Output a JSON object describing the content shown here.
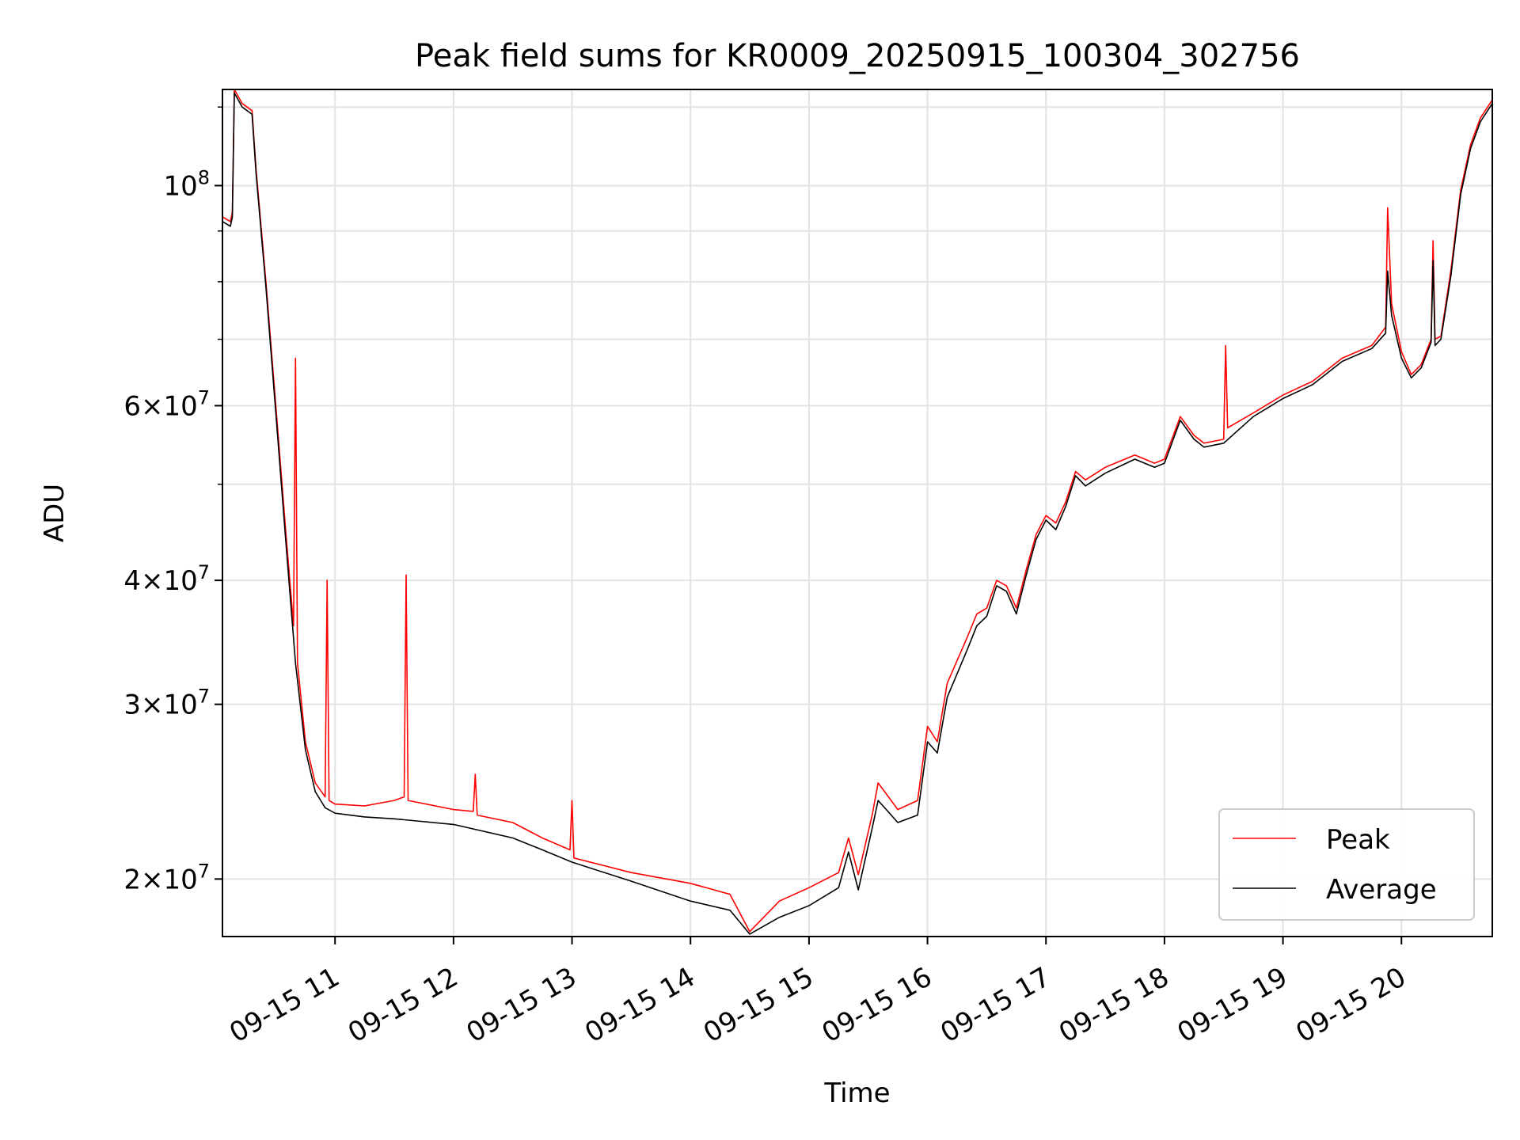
{
  "chart_data": {
    "type": "line",
    "title": "Peak field sums for KR0009_20250915_100304_302756",
    "xlabel": "Time",
    "ylabel": "ADU",
    "yscale": "log",
    "ylim": [
      17500000,
      125000000
    ],
    "xlim_hours": [
      "2025-09-15 10:03",
      "2025-09-15 20:46"
    ],
    "grid": true,
    "legend_position": "lower right",
    "x_ticks": [
      "2025-09-15 11:00",
      "2025-09-15 12:00",
      "2025-09-15 13:00",
      "2025-09-15 14:00",
      "2025-09-15 15:00",
      "2025-09-15 16:00",
      "2025-09-15 17:00",
      "2025-09-15 18:00",
      "2025-09-15 19:00",
      "2025-09-15 20:00"
    ],
    "x_tick_labels": [
      "09-15 11",
      "09-15 12",
      "09-15 13",
      "09-15 14",
      "09-15 15",
      "09-15 16",
      "09-15 17",
      "09-15 18",
      "09-15 19",
      "09-15 20"
    ],
    "y_ticks": [
      {
        "value": 100000000,
        "base": "10",
        "exp": "8",
        "mant": ""
      },
      {
        "value": 60000000,
        "base": "10",
        "exp": "7",
        "mant": "6×"
      },
      {
        "value": 40000000,
        "base": "10",
        "exp": "7",
        "mant": "4×"
      },
      {
        "value": 30000000,
        "base": "10",
        "exp": "7",
        "mant": "3×"
      },
      {
        "value": 20000000,
        "base": "10",
        "exp": "7",
        "mant": "2×"
      }
    ],
    "series": [
      {
        "name": "Peak",
        "color": "#ff0000",
        "points": [
          [
            "2025-09-15 10:03",
            93000000
          ],
          [
            "2025-09-15 10:07",
            92000000
          ],
          [
            "2025-09-15 10:08",
            94000000
          ],
          [
            "2025-09-15 10:09",
            125000000
          ],
          [
            "2025-09-15 10:13",
            121000000
          ],
          [
            "2025-09-15 10:18",
            119000000
          ],
          [
            "2025-09-15 10:20",
            104000000
          ],
          [
            "2025-09-15 10:25",
            80000000
          ],
          [
            "2025-09-15 10:30",
            60000000
          ],
          [
            "2025-09-15 10:35",
            45000000
          ],
          [
            "2025-09-15 10:39",
            36000000
          ],
          [
            "2025-09-15 10:40",
            67000000
          ],
          [
            "2025-09-15 10:41",
            33000000
          ],
          [
            "2025-09-15 10:45",
            27500000
          ],
          [
            "2025-09-15 10:50",
            25000000
          ],
          [
            "2025-09-15 10:55",
            24200000
          ],
          [
            "2025-09-15 10:56",
            40000000
          ],
          [
            "2025-09-15 10:57",
            24000000
          ],
          [
            "2025-09-15 11:00",
            23800000
          ],
          [
            "2025-09-15 11:15",
            23700000
          ],
          [
            "2025-09-15 11:30",
            24000000
          ],
          [
            "2025-09-15 11:35",
            24200000
          ],
          [
            "2025-09-15 11:36",
            40500000
          ],
          [
            "2025-09-15 11:37",
            24000000
          ],
          [
            "2025-09-15 12:00",
            23500000
          ],
          [
            "2025-09-15 12:10",
            23400000
          ],
          [
            "2025-09-15 12:11",
            25500000
          ],
          [
            "2025-09-15 12:12",
            23200000
          ],
          [
            "2025-09-15 12:30",
            22800000
          ],
          [
            "2025-09-15 12:45",
            22000000
          ],
          [
            "2025-09-15 12:59",
            21400000
          ],
          [
            "2025-09-15 13:00",
            24000000
          ],
          [
            "2025-09-15 13:01",
            21000000
          ],
          [
            "2025-09-15 13:30",
            20300000
          ],
          [
            "2025-09-15 14:00",
            19800000
          ],
          [
            "2025-09-15 14:20",
            19300000
          ],
          [
            "2025-09-15 14:30",
            17700000
          ],
          [
            "2025-09-15 14:45",
            19000000
          ],
          [
            "2025-09-15 15:00",
            19600000
          ],
          [
            "2025-09-15 15:15",
            20300000
          ],
          [
            "2025-09-15 15:20",
            22000000
          ],
          [
            "2025-09-15 15:25",
            20200000
          ],
          [
            "2025-09-15 15:32",
            23200000
          ],
          [
            "2025-09-15 15:35",
            25000000
          ],
          [
            "2025-09-15 15:45",
            23500000
          ],
          [
            "2025-09-15 15:55",
            24000000
          ],
          [
            "2025-09-15 16:00",
            28500000
          ],
          [
            "2025-09-15 16:05",
            27500000
          ],
          [
            "2025-09-15 16:10",
            31500000
          ],
          [
            "2025-09-15 16:20",
            35000000
          ],
          [
            "2025-09-15 16:25",
            37000000
          ],
          [
            "2025-09-15 16:30",
            37500000
          ],
          [
            "2025-09-15 16:35",
            40000000
          ],
          [
            "2025-09-15 16:40",
            39500000
          ],
          [
            "2025-09-15 16:45",
            37500000
          ],
          [
            "2025-09-15 16:50",
            41000000
          ],
          [
            "2025-09-15 16:55",
            44500000
          ],
          [
            "2025-09-15 17:00",
            46500000
          ],
          [
            "2025-09-15 17:05",
            45700000
          ],
          [
            "2025-09-15 17:10",
            48000000
          ],
          [
            "2025-09-15 17:15",
            51500000
          ],
          [
            "2025-09-15 17:20",
            50500000
          ],
          [
            "2025-09-15 17:30",
            52000000
          ],
          [
            "2025-09-15 17:45",
            53500000
          ],
          [
            "2025-09-15 17:55",
            52500000
          ],
          [
            "2025-09-15 18:00",
            53000000
          ],
          [
            "2025-09-15 18:08",
            58500000
          ],
          [
            "2025-09-15 18:15",
            56000000
          ],
          [
            "2025-09-15 18:20",
            55000000
          ],
          [
            "2025-09-15 18:30",
            55500000
          ],
          [
            "2025-09-15 18:31",
            69000000
          ],
          [
            "2025-09-15 18:32",
            57000000
          ],
          [
            "2025-09-15 18:45",
            59000000
          ],
          [
            "2025-09-15 19:00",
            61500000
          ],
          [
            "2025-09-15 19:15",
            63500000
          ],
          [
            "2025-09-15 19:30",
            67000000
          ],
          [
            "2025-09-15 19:45",
            69000000
          ],
          [
            "2025-09-15 19:52",
            72000000
          ],
          [
            "2025-09-15 19:53",
            95000000
          ],
          [
            "2025-09-15 19:55",
            76000000
          ],
          [
            "2025-09-15 20:00",
            68000000
          ],
          [
            "2025-09-15 20:05",
            64500000
          ],
          [
            "2025-09-15 20:10",
            66000000
          ],
          [
            "2025-09-15 20:15",
            70000000
          ],
          [
            "2025-09-15 20:16",
            88000000
          ],
          [
            "2025-09-15 20:17",
            70000000
          ],
          [
            "2025-09-15 20:20",
            70500000
          ],
          [
            "2025-09-15 20:25",
            82000000
          ],
          [
            "2025-09-15 20:30",
            99000000
          ],
          [
            "2025-09-15 20:35",
            110000000
          ],
          [
            "2025-09-15 20:40",
            117000000
          ],
          [
            "2025-09-15 20:46",
            122000000
          ]
        ]
      },
      {
        "name": "Average",
        "color": "#000000",
        "points": [
          [
            "2025-09-15 10:03",
            92000000
          ],
          [
            "2025-09-15 10:07",
            91000000
          ],
          [
            "2025-09-15 10:08",
            93000000
          ],
          [
            "2025-09-15 10:09",
            124000000
          ],
          [
            "2025-09-15 10:13",
            120000000
          ],
          [
            "2025-09-15 10:18",
            118000000
          ],
          [
            "2025-09-15 10:20",
            103000000
          ],
          [
            "2025-09-15 10:25",
            79000000
          ],
          [
            "2025-09-15 10:30",
            59000000
          ],
          [
            "2025-09-15 10:35",
            44000000
          ],
          [
            "2025-09-15 10:40",
            33000000
          ],
          [
            "2025-09-15 10:45",
            27000000
          ],
          [
            "2025-09-15 10:50",
            24500000
          ],
          [
            "2025-09-15 10:55",
            23600000
          ],
          [
            "2025-09-15 11:00",
            23300000
          ],
          [
            "2025-09-15 11:15",
            23100000
          ],
          [
            "2025-09-15 11:30",
            23000000
          ],
          [
            "2025-09-15 12:00",
            22700000
          ],
          [
            "2025-09-15 12:30",
            22000000
          ],
          [
            "2025-09-15 12:45",
            21400000
          ],
          [
            "2025-09-15 13:00",
            20800000
          ],
          [
            "2025-09-15 13:30",
            19900000
          ],
          [
            "2025-09-15 14:00",
            19000000
          ],
          [
            "2025-09-15 14:20",
            18600000
          ],
          [
            "2025-09-15 14:30",
            17600000
          ],
          [
            "2025-09-15 14:45",
            18300000
          ],
          [
            "2025-09-15 15:00",
            18800000
          ],
          [
            "2025-09-15 15:15",
            19600000
          ],
          [
            "2025-09-15 15:20",
            21300000
          ],
          [
            "2025-09-15 15:25",
            19500000
          ],
          [
            "2025-09-15 15:32",
            22500000
          ],
          [
            "2025-09-15 15:35",
            24000000
          ],
          [
            "2025-09-15 15:45",
            22800000
          ],
          [
            "2025-09-15 15:55",
            23200000
          ],
          [
            "2025-09-15 16:00",
            27500000
          ],
          [
            "2025-09-15 16:05",
            26800000
          ],
          [
            "2025-09-15 16:10",
            30500000
          ],
          [
            "2025-09-15 16:20",
            34000000
          ],
          [
            "2025-09-15 16:25",
            36000000
          ],
          [
            "2025-09-15 16:30",
            36800000
          ],
          [
            "2025-09-15 16:35",
            39500000
          ],
          [
            "2025-09-15 16:40",
            39000000
          ],
          [
            "2025-09-15 16:45",
            37000000
          ],
          [
            "2025-09-15 16:50",
            40500000
          ],
          [
            "2025-09-15 16:55",
            44000000
          ],
          [
            "2025-09-15 17:00",
            46000000
          ],
          [
            "2025-09-15 17:05",
            45000000
          ],
          [
            "2025-09-15 17:10",
            47500000
          ],
          [
            "2025-09-15 17:15",
            51000000
          ],
          [
            "2025-09-15 17:20",
            49800000
          ],
          [
            "2025-09-15 17:30",
            51300000
          ],
          [
            "2025-09-15 17:45",
            53000000
          ],
          [
            "2025-09-15 17:55",
            52000000
          ],
          [
            "2025-09-15 18:00",
            52500000
          ],
          [
            "2025-09-15 18:08",
            58000000
          ],
          [
            "2025-09-15 18:15",
            55500000
          ],
          [
            "2025-09-15 18:20",
            54500000
          ],
          [
            "2025-09-15 18:30",
            55000000
          ],
          [
            "2025-09-15 18:45",
            58500000
          ],
          [
            "2025-09-15 19:00",
            61000000
          ],
          [
            "2025-09-15 19:15",
            63000000
          ],
          [
            "2025-09-15 19:30",
            66500000
          ],
          [
            "2025-09-15 19:45",
            68500000
          ],
          [
            "2025-09-15 19:52",
            71000000
          ],
          [
            "2025-09-15 19:53",
            82000000
          ],
          [
            "2025-09-15 19:55",
            74000000
          ],
          [
            "2025-09-15 20:00",
            67000000
          ],
          [
            "2025-09-15 20:05",
            64000000
          ],
          [
            "2025-09-15 20:10",
            65500000
          ],
          [
            "2025-09-15 20:15",
            69500000
          ],
          [
            "2025-09-15 20:16",
            84000000
          ],
          [
            "2025-09-15 20:17",
            69000000
          ],
          [
            "2025-09-15 20:20",
            70000000
          ],
          [
            "2025-09-15 20:25",
            81000000
          ],
          [
            "2025-09-15 20:30",
            98000000
          ],
          [
            "2025-09-15 20:35",
            109000000
          ],
          [
            "2025-09-15 20:40",
            116000000
          ],
          [
            "2025-09-15 20:46",
            121000000
          ]
        ]
      }
    ]
  }
}
